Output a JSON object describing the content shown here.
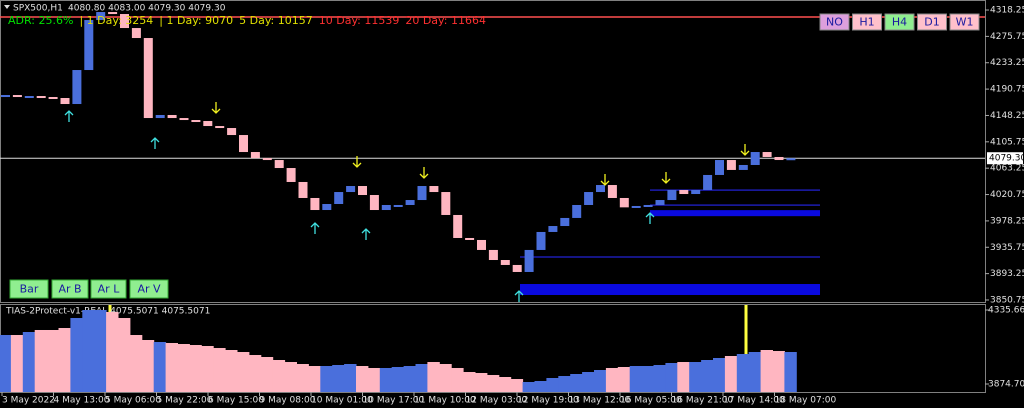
{
  "header": {
    "symbol": "SPX500,H1",
    "ohlc": "4080.80 4083.00 4079.30 4079.30"
  },
  "adr": [
    {
      "text": "ADR: 25.6%",
      "color": "#00e000"
    },
    {
      "text": "| 1 Day: 3254",
      "color": "#e0e000"
    },
    {
      "text": "| 1 Day: 9070",
      "color": "#e0e000"
    },
    {
      "text": "5 Day: 10157",
      "color": "#e0e000"
    },
    {
      "text": "10 Day: 11539",
      "color": "#ff3030"
    },
    {
      "text": "20 Day: 11664",
      "color": "#ff3030"
    }
  ],
  "timeframes": [
    {
      "label": "NO",
      "color": "#dd9fdd"
    },
    {
      "label": "H1",
      "color": "#ffc0cb"
    },
    {
      "label": "H4",
      "color": "#90ee90"
    },
    {
      "label": "D1",
      "color": "#ffc0cb"
    },
    {
      "label": "W1",
      "color": "#ffc0cb"
    }
  ],
  "tools": [
    "Bar",
    "Ar B",
    "Ar L",
    "Ar V"
  ],
  "price_axis": {
    "range": [
      3847.5,
      4334.4
    ],
    "ticks": [
      4318.25,
      4275.75,
      4233.25,
      4190.75,
      4148.25,
      4105.75,
      4063.25,
      4020.75,
      3978.25,
      3935.75,
      3893.25,
      3850.75
    ],
    "current": {
      "value": 4079.3,
      "label": "4079.30"
    }
  },
  "price_bars": {
    "up_color": "#4a6fdc",
    "down_color": "#ffb6c1",
    "closes": [
      4181.2,
      4179.6,
      4179.6,
      4178.0,
      4176.4,
      4166.7,
      4221.5,
      4302.1,
      4315.0,
      4311.8,
      4289.2,
      4273.1,
      4144.1,
      4149.0,
      4144.1,
      4140.9,
      4139.3,
      4131.2,
      4128.0,
      4116.7,
      4089.3,
      4079.6,
      4076.4,
      4063.5,
      4041.0,
      4015.2,
      3995.8,
      4005.5,
      4024.8,
      4034.5,
      4020.0,
      3995.8,
      4003.9,
      4003.9,
      4011.9,
      4034.5,
      4024.8,
      3987.8,
      3950.7,
      3947.5,
      3931.4,
      3915.2,
      3907.2,
      3895.9,
      3931.4,
      3960.4,
      3970.0,
      3983.0,
      4003.9,
      4024.8,
      4036.1,
      4015.2,
      4000.1,
      4002.3,
      4003.9,
      4011.9,
      4028.1,
      4021.6,
      4028.1,
      4052.3,
      4076.4,
      4060.4,
      4068.4,
      4089.3,
      4081.3,
      4076.4,
      4079.3
    ]
  },
  "levels": [
    {
      "price": 4307.0,
      "color": "#ff5050"
    },
    {
      "price": 4027.9,
      "color": "#1c1cb0"
    },
    {
      "price": 4003.7,
      "color": "#1c1cb0"
    },
    {
      "price": 3920.0,
      "color": "#1c1cb0"
    }
  ],
  "zones": [
    {
      "low": 3985.9,
      "high": 3995.6,
      "color": "#0a0ae0"
    },
    {
      "low": 3858.8,
      "high": 3876.5,
      "color": "#0a0ae0"
    }
  ],
  "indicator": {
    "label": "TIAS-2Protect-v1-REAL 4075.5071 4075.5071",
    "range": [
      3824.87,
      4373.04
    ],
    "ticks": [
      4335.6671,
      3874.7003
    ],
    "values": [
      4179.9,
      4179.9,
      4198.6,
      4211.1,
      4211.1,
      4223.5,
      4285.8,
      4335.6,
      4335.6,
      4323.2,
      4285.8,
      4179.9,
      4148.8,
      4136.3,
      4130.1,
      4123.9,
      4117.6,
      4111.4,
      4098.9,
      4086.5,
      4074.0,
      4055.3,
      4042.9,
      4024.2,
      4011.7,
      3999.3,
      3986.8,
      3986.8,
      3993.1,
      3999.3,
      3986.8,
      3974.4,
      3974.4,
      3980.6,
      3986.8,
      3999.3,
      4011.7,
      3999.3,
      3974.4,
      3949.4,
      3943.2,
      3930.8,
      3918.3,
      3905.8,
      3887.2,
      3893.4,
      3912.1,
      3924.5,
      3937.0,
      3949.4,
      3961.9,
      3974.4,
      3980.6,
      3986.8,
      3986.8,
      3993.1,
      4005.5,
      4011.7,
      4011.7,
      4024.2,
      4036.7,
      4049.1,
      4061.6,
      4074.0,
      4086.5,
      4080.3,
      4074.0
    ]
  },
  "time_axis": [
    "3 May 2022",
    "4 May 13:00",
    "5 May 06:00",
    "5 May 22:00",
    "6 May 15:00",
    "9 May 08:00",
    "10 May 01:00",
    "10 May 17:00",
    "11 May 10:00",
    "12 May 03:00",
    "12 May 19:00",
    "13 May 12:00",
    "16 May 05:00",
    "16 May 21:00",
    "17 May 14:00",
    "18 May 07:00"
  ]
}
